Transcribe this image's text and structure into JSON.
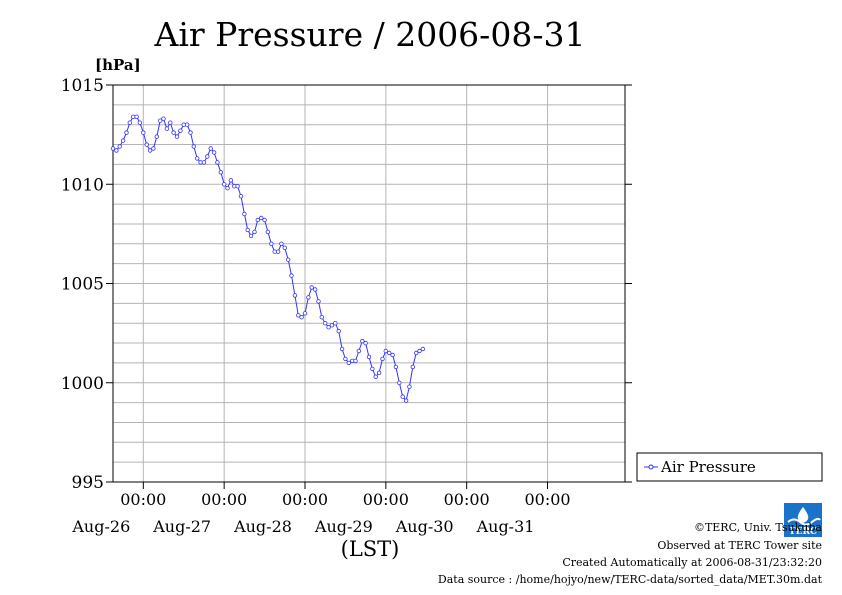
{
  "chart_data": {
    "type": "line",
    "title": "Air Pressure / 2006-08-31",
    "ylabel": "[hPa]",
    "xlabel": "(LST)",
    "ylim": [
      995,
      1015
    ],
    "yticks": [
      995,
      1000,
      1005,
      1010,
      1015
    ],
    "xlim": [
      "2006-08-25 15:00",
      "2006-08-31 23:00"
    ],
    "xticks": [
      {
        "time": "2006-08-26 00:00",
        "time_label": "00:00",
        "date_label": "Aug-26"
      },
      {
        "time": "2006-08-27 00:00",
        "time_label": "00:00",
        "date_label": "Aug-27"
      },
      {
        "time": "2006-08-28 00:00",
        "time_label": "00:00",
        "date_label": "Aug-28"
      },
      {
        "time": "2006-08-29 00:00",
        "time_label": "00:00",
        "date_label": "Aug-29"
      },
      {
        "time": "2006-08-30 00:00",
        "time_label": "00:00",
        "date_label": "Aug-30"
      },
      {
        "time": "2006-08-31 00:00",
        "time_label": "00:00",
        "date_label": "Aug-31"
      }
    ],
    "grid": true,
    "legend_position": "right",
    "series": [
      {
        "name": "Air Pressure",
        "color": "#3333ff",
        "marker": "open-circle",
        "points": [
          [
            "2006-08-25 15:00",
            1011.8
          ],
          [
            "2006-08-25 16:00",
            1011.7
          ],
          [
            "2006-08-25 17:00",
            1011.9
          ],
          [
            "2006-08-25 18:00",
            1012.2
          ],
          [
            "2006-08-25 19:00",
            1012.6
          ],
          [
            "2006-08-25 20:00",
            1013.1
          ],
          [
            "2006-08-25 21:00",
            1013.4
          ],
          [
            "2006-08-25 22:00",
            1013.4
          ],
          [
            "2006-08-25 23:00",
            1013.1
          ],
          [
            "2006-08-26 00:00",
            1012.6
          ],
          [
            "2006-08-26 01:00",
            1012.0
          ],
          [
            "2006-08-26 02:00",
            1011.7
          ],
          [
            "2006-08-26 03:00",
            1011.8
          ],
          [
            "2006-08-26 04:00",
            1012.4
          ],
          [
            "2006-08-26 05:00",
            1013.2
          ],
          [
            "2006-08-26 06:00",
            1013.3
          ],
          [
            "2006-08-26 07:00",
            1012.8
          ],
          [
            "2006-08-26 08:00",
            1013.1
          ],
          [
            "2006-08-26 09:00",
            1012.6
          ],
          [
            "2006-08-26 10:00",
            1012.4
          ],
          [
            "2006-08-26 11:00",
            1012.7
          ],
          [
            "2006-08-26 12:00",
            1013.0
          ],
          [
            "2006-08-26 13:00",
            1013.0
          ],
          [
            "2006-08-26 14:00",
            1012.6
          ],
          [
            "2006-08-26 15:00",
            1011.9
          ],
          [
            "2006-08-26 16:00",
            1011.3
          ],
          [
            "2006-08-26 17:00",
            1011.1
          ],
          [
            "2006-08-26 18:00",
            1011.1
          ],
          [
            "2006-08-26 19:00",
            1011.4
          ],
          [
            "2006-08-26 20:00",
            1011.8
          ],
          [
            "2006-08-26 21:00",
            1011.6
          ],
          [
            "2006-08-26 22:00",
            1011.1
          ],
          [
            "2006-08-26 23:00",
            1010.6
          ],
          [
            "2006-08-27 00:00",
            1010.0
          ],
          [
            "2006-08-27 01:00",
            1009.8
          ],
          [
            "2006-08-27 02:00",
            1010.2
          ],
          [
            "2006-08-27 03:00",
            1009.9
          ],
          [
            "2006-08-27 04:00",
            1009.9
          ],
          [
            "2006-08-27 05:00",
            1009.4
          ],
          [
            "2006-08-27 06:00",
            1008.5
          ],
          [
            "2006-08-27 07:00",
            1007.7
          ],
          [
            "2006-08-27 08:00",
            1007.4
          ],
          [
            "2006-08-27 09:00",
            1007.6
          ],
          [
            "2006-08-27 10:00",
            1008.2
          ],
          [
            "2006-08-27 11:00",
            1008.3
          ],
          [
            "2006-08-27 12:00",
            1008.2
          ],
          [
            "2006-08-27 13:00",
            1007.6
          ],
          [
            "2006-08-27 14:00",
            1007.0
          ],
          [
            "2006-08-27 15:00",
            1006.6
          ],
          [
            "2006-08-27 16:00",
            1006.6
          ],
          [
            "2006-08-27 17:00",
            1007.0
          ],
          [
            "2006-08-27 18:00",
            1006.8
          ],
          [
            "2006-08-27 19:00",
            1006.2
          ],
          [
            "2006-08-27 20:00",
            1005.4
          ],
          [
            "2006-08-27 21:00",
            1004.4
          ],
          [
            "2006-08-27 22:00",
            1003.4
          ],
          [
            "2006-08-27 23:00",
            1003.3
          ],
          [
            "2006-08-28 00:00",
            1003.5
          ],
          [
            "2006-08-28 01:00",
            1004.3
          ],
          [
            "2006-08-28 02:00",
            1004.8
          ],
          [
            "2006-08-28 03:00",
            1004.7
          ],
          [
            "2006-08-28 04:00",
            1004.1
          ],
          [
            "2006-08-28 05:00",
            1003.3
          ],
          [
            "2006-08-28 06:00",
            1003.0
          ],
          [
            "2006-08-28 07:00",
            1002.8
          ],
          [
            "2006-08-28 08:00",
            1002.9
          ],
          [
            "2006-08-28 09:00",
            1003.0
          ],
          [
            "2006-08-28 10:00",
            1002.6
          ],
          [
            "2006-08-28 11:00",
            1001.7
          ],
          [
            "2006-08-28 12:00",
            1001.2
          ],
          [
            "2006-08-28 13:00",
            1001.0
          ],
          [
            "2006-08-28 14:00",
            1001.1
          ],
          [
            "2006-08-28 15:00",
            1001.1
          ],
          [
            "2006-08-28 16:00",
            1001.6
          ],
          [
            "2006-08-28 17:00",
            1002.1
          ],
          [
            "2006-08-28 18:00",
            1002.0
          ],
          [
            "2006-08-28 19:00",
            1001.3
          ],
          [
            "2006-08-28 20:00",
            1000.7
          ],
          [
            "2006-08-28 21:00",
            1000.3
          ],
          [
            "2006-08-28 22:00",
            1000.5
          ],
          [
            "2006-08-28 23:00",
            1001.2
          ],
          [
            "2006-08-29 00:00",
            1001.6
          ],
          [
            "2006-08-29 01:00",
            1001.5
          ],
          [
            "2006-08-29 02:00",
            1001.4
          ],
          [
            "2006-08-29 03:00",
            1000.8
          ],
          [
            "2006-08-29 04:00",
            1000.0
          ],
          [
            "2006-08-29 05:00",
            999.3
          ],
          [
            "2006-08-29 06:00",
            999.1
          ],
          [
            "2006-08-29 07:00",
            999.8
          ],
          [
            "2006-08-29 08:00",
            1000.8
          ],
          [
            "2006-08-29 09:00",
            1001.5
          ],
          [
            "2006-08-29 10:00",
            1001.6
          ],
          [
            "2006-08-29 11:00",
            1001.7
          ]
        ]
      }
    ]
  },
  "credits": {
    "copyright": "©TERC, Univ. Tsukuba",
    "observed": "Observed at TERC Tower site",
    "created": "Created Automatically at 2006-08-31/23:32:20",
    "source": "Data source : /home/hojyo/new/TERC-data/sorted_data/MET.30m.dat",
    "logo_text": "TERC"
  }
}
